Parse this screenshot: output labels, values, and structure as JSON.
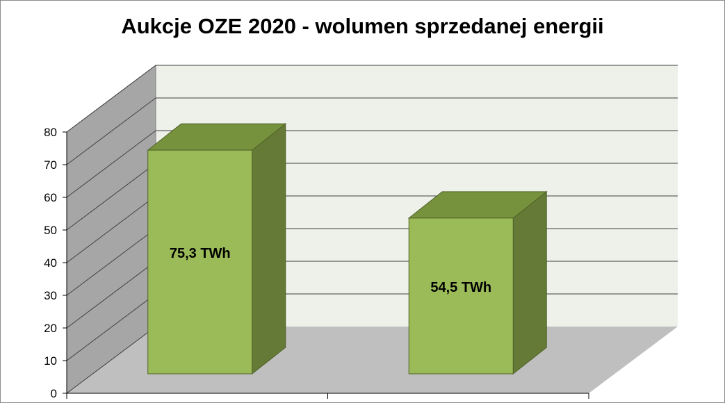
{
  "chart_data": {
    "type": "bar",
    "title": "Aukcje OZE 2020 - wolumen sprzedanej energii",
    "xlabel": "",
    "ylabel": "",
    "categories": [
      "",
      ""
    ],
    "series": [
      {
        "values": [
          75.3,
          54.5
        ]
      }
    ],
    "data_labels": [
      "75,3 TWh",
      "54,5 TWh"
    ],
    "ylim": [
      0,
      80
    ],
    "yticks": [
      "0",
      "10",
      "20",
      "30",
      "40",
      "50",
      "60",
      "70",
      "80"
    ],
    "grid": true,
    "legend": "none",
    "three_d": true,
    "colors": {
      "bar_front": "#9bbb59",
      "bar_top": "#76923c",
      "bar_side": "#657a36",
      "bar_outline": "#4f6228",
      "back_wall": "#eef0ea",
      "side_wall": "#a6a6a6",
      "floor": "#bfbfbf",
      "gridline": "#404040"
    }
  }
}
